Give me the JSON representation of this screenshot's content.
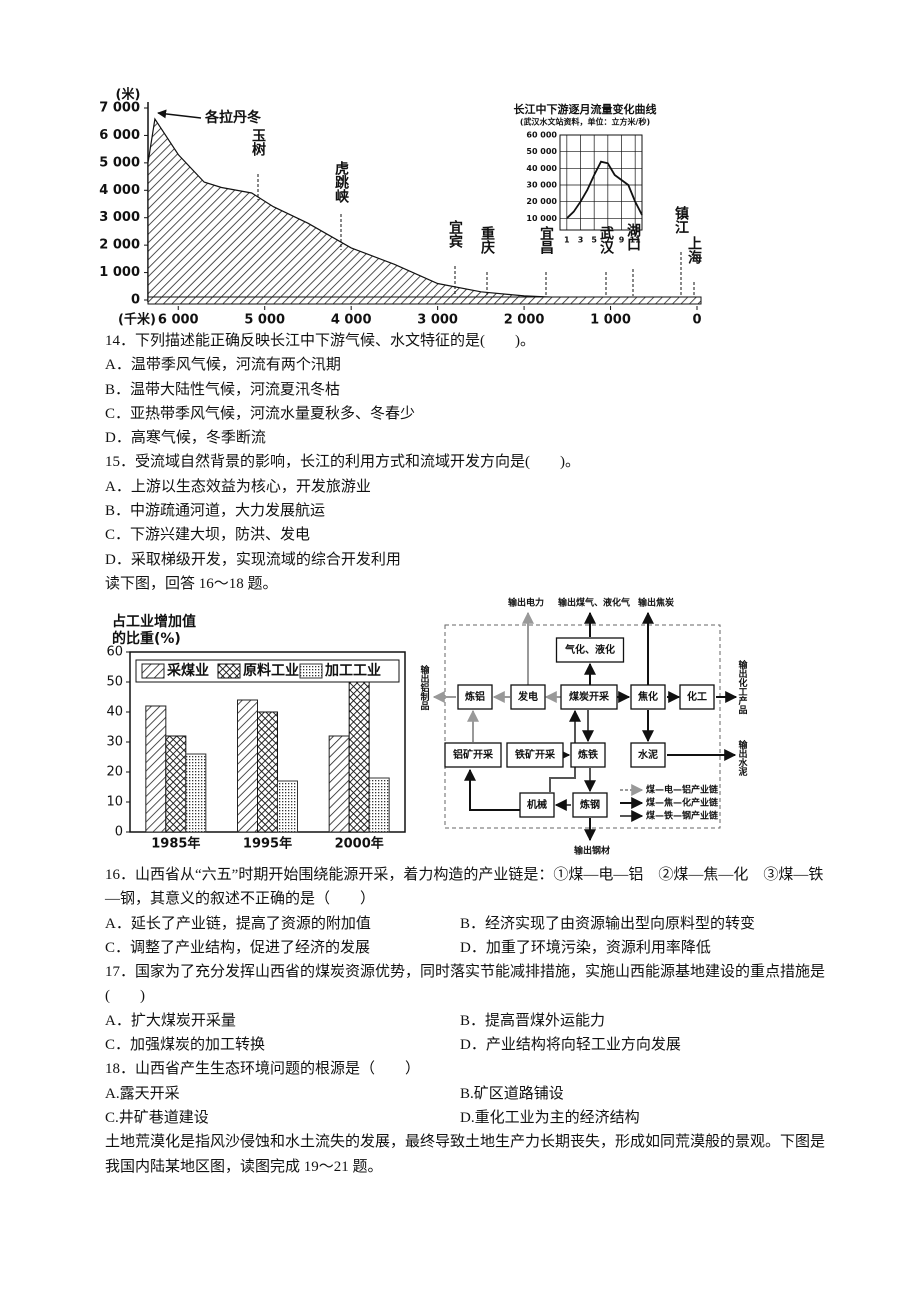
{
  "chart_data": [
    {
      "type": "area",
      "y_label": "(米)",
      "x_label": "(千米)",
      "x": [
        6350,
        6270,
        6000,
        5700,
        5500,
        5150,
        4900,
        4500,
        4000,
        3500,
        3000,
        2500,
        2000,
        1500,
        1000,
        500,
        0
      ],
      "values": [
        5000,
        6600,
        5300,
        4300,
        4100,
        3900,
        3400,
        2800,
        1900,
        1300,
        600,
        300,
        150,
        80,
        40,
        15,
        0
      ],
      "xlim": [
        6350,
        0
      ],
      "ylim": [
        0,
        7000
      ],
      "yticks": [
        {
          "value": 7000,
          "label": "7 000"
        },
        {
          "value": 6000,
          "label": "6 000"
        },
        {
          "value": 5000,
          "label": "5 000"
        },
        {
          "value": 4000,
          "label": "4 000"
        },
        {
          "value": 3000,
          "label": "3 000"
        },
        {
          "value": 2000,
          "label": "2 000"
        },
        {
          "value": 1000,
          "label": "1 000"
        },
        0
      ],
      "xticks": [
        {
          "value": 6000,
          "label": "6 000"
        },
        {
          "value": 5000,
          "label": "5 000"
        },
        {
          "value": 4000,
          "label": "4 000"
        },
        {
          "value": 3000,
          "label": "3 000"
        },
        {
          "value": 2000,
          "label": "2 000"
        },
        {
          "value": 1000,
          "label": "1 000"
        },
        0
      ],
      "annotations": [
        "各拉丹冬",
        "玉树",
        "虎跳峡",
        "宜宾",
        "重庆",
        "宜昌",
        "武汉",
        "湖口",
        "镇江",
        "上海"
      ]
    },
    {
      "type": "line",
      "title": "长江中下游逐月流量变化曲线",
      "subtitle": "(武汉水文站资料，单位：立方米/秒)",
      "x": [
        1,
        2,
        3,
        4,
        5,
        6,
        7,
        8,
        9,
        10,
        11,
        12
      ],
      "values": [
        10000,
        14000,
        20000,
        27000,
        36000,
        44000,
        43000,
        36000,
        33000,
        30000,
        20000,
        12000
      ],
      "xlim": [
        0,
        12
      ],
      "ylim": [
        3000,
        60000
      ],
      "xticks": [
        1,
        3,
        5,
        7,
        9,
        11
      ],
      "yticks": [
        {
          "value": 10000,
          "label": "10 000"
        },
        {
          "value": 20000,
          "label": "20 000"
        },
        {
          "value": 30000,
          "label": "30 000"
        },
        {
          "value": 40000,
          "label": "40 000"
        },
        {
          "value": 50000,
          "label": "50 000"
        },
        {
          "value": 60000,
          "label": "60 000"
        }
      ],
      "grid": true
    },
    {
      "type": "bar",
      "title": [
        "占工业增加值",
        "的比重(%)"
      ],
      "categories": [
        "1985年",
        "1995年",
        "2000年"
      ],
      "series": [
        {
          "name": "采煤业",
          "color": "#222",
          "pattern": "hatch",
          "values": [
            42,
            44,
            32
          ]
        },
        {
          "name": "原料工业",
          "color": "#111",
          "pattern": "crosshatch",
          "values": [
            32,
            40,
            51
          ]
        },
        {
          "name": "加工工业",
          "color": "#333",
          "pattern": "dots",
          "values": [
            26,
            17,
            18
          ]
        }
      ],
      "ylim": [
        0,
        60
      ],
      "yticks": [
        0,
        10,
        20,
        30,
        40,
        50,
        60
      ]
    }
  ],
  "diagram": {
    "nodes": [
      "输出电力",
      "输出煤气、液化气",
      "输出焦炭",
      "气化、液化",
      "炼铝",
      "发电",
      "煤炭开采",
      "焦化",
      "化工",
      "输出化工产品",
      "输出铝制品",
      "铝矿开采",
      "铁矿开采",
      "炼铁",
      "水泥",
      "输出水泥",
      "机械",
      "炼钢",
      "输出钢材"
    ],
    "legend": [
      "煤—电—铝产业链",
      "煤—焦—化产业链",
      "煤—铁—钢产业链"
    ]
  },
  "block1": [
    {
      "text": "14．下列描述能正确反映长江中下游气候、水文特征的是(　　)。"
    },
    {
      "text": "A．温带季风气候，河流有两个汛期"
    },
    {
      "text": "B．温带大陆性气候，河流夏汛冬枯"
    },
    {
      "text": "C．亚热带季风气候，河流水量夏秋多、冬春少"
    },
    {
      "text": "D．高寒气候，冬季断流"
    },
    {
      "text": "15．受流域自然背景的影响，长江的利用方式和流域开发方向是(　　)。"
    },
    {
      "text": "A．上游以生态效益为核心，开发旅游业"
    },
    {
      "text": "B．中游疏通河道，大力发展航运"
    },
    {
      "text": "C．下游兴建大坝，防洪、发电"
    },
    {
      "text": "D．采取梯级开发，实现流域的综合开发利用"
    },
    {
      "text": "读下图，回答 16～18 题。"
    }
  ],
  "block2": [
    {
      "text": "16．山西省从“六五”时期开始围绕能源开采，着力构造的产业链是：①煤—电—铝　②煤—焦—化　③煤—铁—钢，其意义的叙述不正确的是（　　）"
    },
    {
      "a": "A．延长了产业链，提高了资源的附加值",
      "b": "B．经济实现了由资源输出型向原料型的转变"
    },
    {
      "a": "C．调整了产业结构，促进了经济的发展",
      "b": "D．加重了环境污染，资源利用率降低"
    },
    {
      "text": "17．国家为了充分发挥山西省的煤炭资源优势，同时落实节能减排措施，实施山西能源基地建设的重点措施是(　　)"
    },
    {
      "a": "A．扩大煤炭开采量",
      "b": "B．提高晋煤外运能力"
    },
    {
      "a": "C．加强煤炭的加工转换",
      "b": "D．产业结构将向轻工业方向发展"
    },
    {
      "text": "18．山西省产生生态环境问题的根源是（　　）"
    },
    {
      "a": "A.露天开采",
      "b": "B.矿区道路铺设"
    },
    {
      "a": "C.井矿巷道建设",
      "b": "D.重化工业为主的经济结构"
    },
    {
      "text": "土地荒漠化是指风沙侵蚀和水土流失的发展，最终导致土地生产力长期丧失，形成如同荒漠般的景观。下图是我国内陆某地区图，读图完成 19～21 题。"
    }
  ]
}
